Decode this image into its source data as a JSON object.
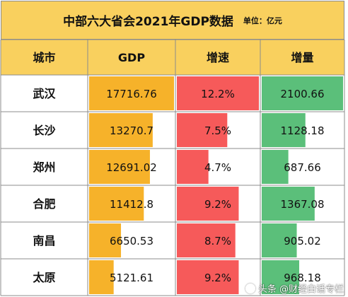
{
  "title": "中部六大省会2021年GDP数据",
  "unit": "单位：亿元",
  "watermark": {
    "source": "头条",
    "author": "@财经白话专栏"
  },
  "colors": {
    "header_bg": "#f9d05e",
    "header_row_bg": "#f9d05e",
    "gdp_bar": "#f6b22a",
    "growth_bar": "#f65a5a",
    "increase_bar": "#5bbf7a",
    "grid": "#8c8c8c"
  },
  "chart_data": {
    "type": "table",
    "columns": [
      "城市",
      "GDP",
      "增速",
      "增量"
    ],
    "rows": [
      {
        "city": "武汉",
        "gdp": "17716.76",
        "growth": "12.2%",
        "increase": "2100.66"
      },
      {
        "city": "长沙",
        "gdp": "13270.7",
        "growth": "7.5%",
        "increase": "1128.18"
      },
      {
        "city": "郑州",
        "gdp": "12691.02",
        "growth": "4.7%",
        "increase": "687.66"
      },
      {
        "city": "合肥",
        "gdp": "11412.8",
        "growth": "9.2%",
        "increase": "1367.08"
      },
      {
        "city": "南昌",
        "gdp": "6650.53",
        "growth": "8.7%",
        "increase": "905.02"
      },
      {
        "city": "太原",
        "gdp": "5121.61",
        "growth": "9.2%",
        "increase": "968.18"
      }
    ],
    "data_bars": {
      "gdp": [
        17716.76,
        13270.7,
        12691.02,
        11412.8,
        6650.53,
        5121.61
      ],
      "growth": [
        12.2,
        7.5,
        4.7,
        9.2,
        8.7,
        9.2
      ],
      "increase": [
        2100.66,
        1128.18,
        687.66,
        1367.08,
        905.02,
        968.18
      ]
    }
  }
}
